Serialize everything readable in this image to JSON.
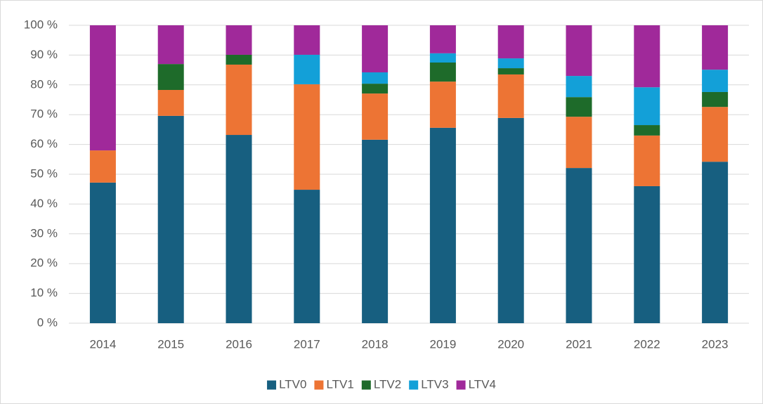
{
  "chart_data": {
    "type": "stacked_bar",
    "categories": [
      "2014",
      "2015",
      "2016",
      "2017",
      "2018",
      "2019",
      "2020",
      "2021",
      "2022",
      "2023"
    ],
    "series": [
      {
        "name": "LTV0",
        "color": "#175f80",
        "values": [
          47.2,
          69.6,
          63.2,
          44.8,
          61.6,
          65.6,
          68.9,
          52.1,
          46.0,
          54.2
        ]
      },
      {
        "name": "LTV1",
        "color": "#ed7434",
        "values": [
          10.8,
          8.7,
          23.6,
          35.4,
          15.5,
          15.5,
          14.6,
          17.2,
          17.0,
          18.4
        ]
      },
      {
        "name": "LTV2",
        "color": "#1e6b2a",
        "values": [
          0,
          8.7,
          3.3,
          0,
          3.3,
          6.4,
          2.1,
          6.6,
          3.5,
          5.0
        ]
      },
      {
        "name": "LTV3",
        "color": "#13a0d8",
        "values": [
          0,
          0,
          0,
          9.9,
          3.8,
          3.1,
          3.3,
          7.1,
          12.7,
          7.5
        ]
      },
      {
        "name": "LTV4",
        "color": "#a0299a",
        "values": [
          42.0,
          13.0,
          9.9,
          9.9,
          15.8,
          9.4,
          11.1,
          17.0,
          20.8,
          14.9
        ]
      }
    ],
    "ylim": [
      0,
      100
    ],
    "yticks": [
      {
        "value": 0,
        "label": "0 %"
      },
      {
        "value": 10,
        "label": "10 %"
      },
      {
        "value": 20,
        "label": "20 %"
      },
      {
        "value": 30,
        "label": "30 %"
      },
      {
        "value": 40,
        "label": "40 %"
      },
      {
        "value": 50,
        "label": "50 %"
      },
      {
        "value": 60,
        "label": "60 %"
      },
      {
        "value": 70,
        "label": "70 %"
      },
      {
        "value": 80,
        "label": "80 %"
      },
      {
        "value": 90,
        "label": "90 %"
      },
      {
        "value": 100,
        "label": "100 %"
      }
    ],
    "grid": true,
    "legend": "bottom"
  }
}
